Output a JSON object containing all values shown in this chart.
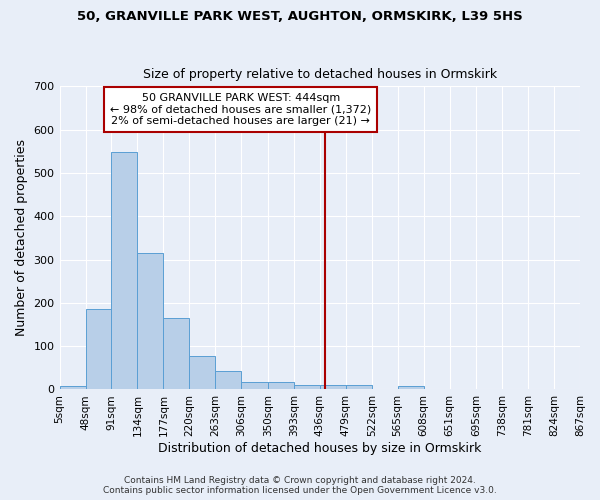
{
  "title1": "50, GRANVILLE PARK WEST, AUGHTON, ORMSKIRK, L39 5HS",
  "title2": "Size of property relative to detached houses in Ormskirk",
  "xlabel": "Distribution of detached houses by size in Ormskirk",
  "ylabel": "Number of detached properties",
  "bar_values": [
    8,
    185,
    548,
    315,
    165,
    77,
    43,
    17,
    17,
    10,
    10,
    10,
    0,
    8,
    0,
    0,
    0,
    0,
    0,
    0
  ],
  "bin_edges": [
    5,
    48,
    91,
    134,
    177,
    220,
    263,
    306,
    350,
    393,
    436,
    479,
    522,
    565,
    608,
    651,
    695,
    738,
    781,
    824,
    867
  ],
  "xtick_labels": [
    "5sqm",
    "48sqm",
    "91sqm",
    "134sqm",
    "177sqm",
    "220sqm",
    "263sqm",
    "306sqm",
    "350sqm",
    "393sqm",
    "436sqm",
    "479sqm",
    "522sqm",
    "565sqm",
    "608sqm",
    "651sqm",
    "695sqm",
    "738sqm",
    "781sqm",
    "824sqm",
    "867sqm"
  ],
  "bar_color": "#b8cfe8",
  "bar_edge_color": "#5a9fd4",
  "background_color": "#e8eef8",
  "grid_color": "#ffffff",
  "red_line_x": 444,
  "annotation_title": "50 GRANVILLE PARK WEST: 444sqm",
  "annotation_line1": "← 98% of detached houses are smaller (1,372)",
  "annotation_line2": "2% of semi-detached houses are larger (21) →",
  "annotation_box_color": "#ffffff",
  "annotation_border_color": "#aa0000",
  "red_line_color": "#aa0000",
  "ylim": [
    0,
    700
  ],
  "yticks": [
    0,
    100,
    200,
    300,
    400,
    500,
    600,
    700
  ],
  "footer1": "Contains HM Land Registry data © Crown copyright and database right 2024.",
  "footer2": "Contains public sector information licensed under the Open Government Licence v3.0."
}
